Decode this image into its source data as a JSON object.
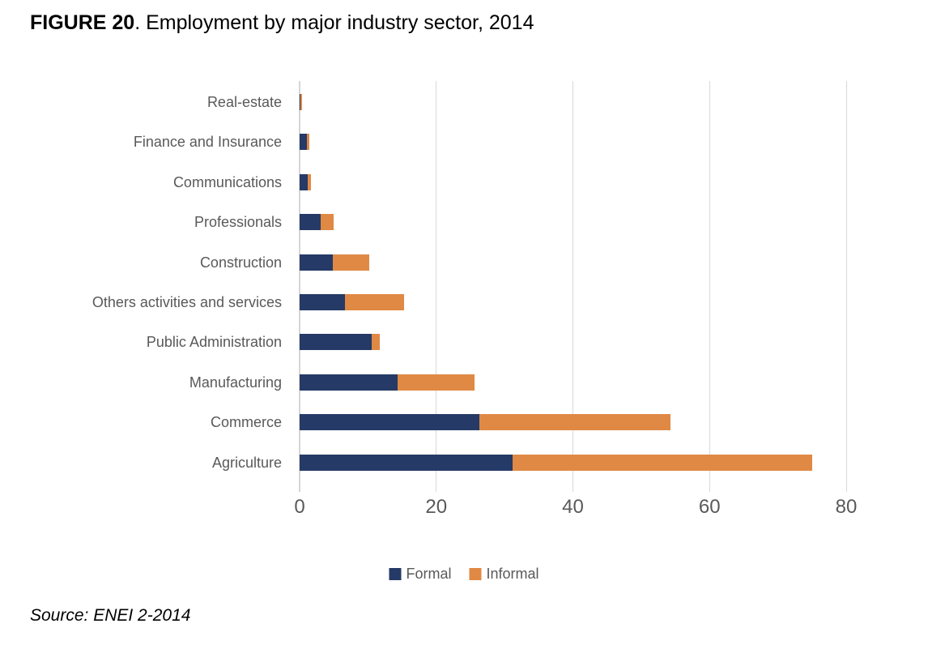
{
  "figure": {
    "label": "FIGURE 20",
    "title_rest": ". Employment by major industry sector, 2014",
    "source": "Source: ENEI 2-2014"
  },
  "colors": {
    "formal": "#253a66",
    "informal": "#e08945",
    "gridline": "#d9d9d9",
    "axis_text": "#595959",
    "category_text": "#595959"
  },
  "legend": {
    "items": [
      {
        "label": "Formal",
        "color": "#253a66"
      },
      {
        "label": "Informal",
        "color": "#e08945"
      }
    ]
  },
  "chart_data": {
    "type": "bar",
    "orientation": "horizontal",
    "stacked": true,
    "title": "FIGURE 20. Employment by major industry sector, 2014",
    "xlabel": "",
    "ylabel": "",
    "xlim": [
      0,
      80
    ],
    "xticks": [
      0,
      20,
      40,
      60,
      80
    ],
    "grid": "vertical",
    "legend_position": "bottom",
    "categories": [
      "Real-estate",
      "Finance and Insurance",
      "Communications",
      "Professionals",
      "Construction",
      "Others activities and services",
      "Public Administration",
      "Manufacturing",
      "Commerce",
      "Agriculture"
    ],
    "series": [
      {
        "name": "Formal",
        "color": "#253a66",
        "values": [
          0.1,
          1.1,
          1.2,
          3.1,
          4.9,
          6.6,
          10.6,
          14.3,
          26.3,
          31.2
        ]
      },
      {
        "name": "Informal",
        "color": "#e08945",
        "values": [
          0.3,
          0.3,
          0.4,
          1.9,
          5.3,
          8.7,
          1.1,
          11.3,
          28.0,
          43.8
        ]
      }
    ]
  }
}
